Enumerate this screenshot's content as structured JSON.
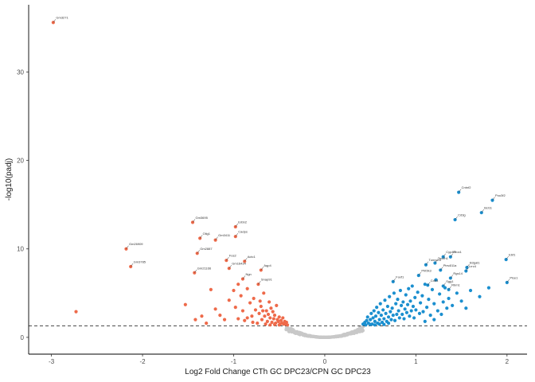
{
  "chart_data": {
    "type": "scatter",
    "title": "",
    "xlabel": "Log2 Fold Change CTh GC DPC23/CPN GC DPC23",
    "ylabel": "-log10(padj)",
    "xlim": [
      -3.25,
      2.22
    ],
    "ylim": [
      -1.9,
      37.6
    ],
    "x_ticks": [
      "-3",
      "-2",
      "-1",
      "0",
      "1",
      "2"
    ],
    "y_ticks": [
      "0",
      "10",
      "20",
      "30"
    ],
    "threshold_y": 1.3,
    "colors": {
      "down": "#EE6A4A",
      "up": "#1B8FCF",
      "ns": "#C8C8C8",
      "axis": "#000000",
      "threshold": "#333333"
    },
    "grid": false,
    "legend": "none",
    "labeled_points": [
      {
        "label": "Gm3271",
        "x": -2.98,
        "y": 35.6,
        "group": "down"
      },
      {
        "label": "Gm26909",
        "x": -2.18,
        "y": 10.0,
        "group": "down"
      },
      {
        "label": "Gm3785",
        "x": -2.13,
        "y": 8.0,
        "group": "down"
      },
      {
        "label": "Gm3695",
        "x": -1.45,
        "y": 13.0,
        "group": "down"
      },
      {
        "label": "Olig1",
        "x": -1.37,
        "y": 11.2,
        "group": "down"
      },
      {
        "label": "Gm3411",
        "x": -1.2,
        "y": 11.0,
        "group": "down"
      },
      {
        "label": "Gm2887",
        "x": -1.4,
        "y": 9.5,
        "group": "down"
      },
      {
        "label": "Gm21166",
        "x": -1.43,
        "y": 7.3,
        "group": "down"
      },
      {
        "label": "Erbb2",
        "x": -0.98,
        "y": 12.5,
        "group": "down"
      },
      {
        "label": "Cadps",
        "x": -0.98,
        "y": 11.4,
        "group": "down"
      },
      {
        "label": "Fos2",
        "x": -1.08,
        "y": 8.7,
        "group": "down"
      },
      {
        "label": "Gm16434",
        "x": -1.05,
        "y": 7.8,
        "group": "down"
      },
      {
        "label": "Actc1",
        "x": -0.88,
        "y": 8.6,
        "group": "down"
      },
      {
        "label": "Ngn",
        "x": -0.9,
        "y": 6.6,
        "group": "down"
      },
      {
        "label": "Aqp4",
        "x": -0.7,
        "y": 7.6,
        "group": "down"
      },
      {
        "label": "Snap91",
        "x": -0.73,
        "y": 6.0,
        "group": "down"
      },
      {
        "label": "Cntnf2",
        "x": 1.47,
        "y": 16.4,
        "group": "up"
      },
      {
        "label": "Cd3g",
        "x": 1.43,
        "y": 13.3,
        "group": "up"
      },
      {
        "label": "Pou3f2",
        "x": 1.84,
        "y": 15.5,
        "group": "up"
      },
      {
        "label": "Bcl11",
        "x": 1.72,
        "y": 14.1,
        "group": "up"
      },
      {
        "label": "Cyp4f2",
        "x": 1.3,
        "y": 9.1,
        "group": "up"
      },
      {
        "label": "Prox1",
        "x": 1.38,
        "y": 9.1,
        "group": "up"
      },
      {
        "label": "Ebf1",
        "x": 1.99,
        "y": 8.8,
        "group": "up"
      },
      {
        "label": "Tunnr2l3",
        "x": 1.11,
        "y": 8.2,
        "group": "up"
      },
      {
        "label": "Tox2h1",
        "x": 1.21,
        "y": 8.4,
        "group": "up"
      },
      {
        "label": "Ptrs4l11a",
        "x": 1.27,
        "y": 7.6,
        "group": "up"
      },
      {
        "label": "B3gat1",
        "x": 1.56,
        "y": 7.9,
        "group": "up"
      },
      {
        "label": "Lrrc4",
        "x": 1.55,
        "y": 7.5,
        "group": "up"
      },
      {
        "label": "Phf2k3",
        "x": 1.03,
        "y": 7.0,
        "group": "up"
      },
      {
        "label": "Rgs14",
        "x": 1.38,
        "y": 6.7,
        "group": "up"
      },
      {
        "label": "Rbm1",
        "x": 1.36,
        "y": 5.4,
        "group": "up"
      },
      {
        "label": "Foxf1",
        "x": 0.75,
        "y": 6.3,
        "group": "up"
      },
      {
        "label": "Plce1",
        "x": 2.0,
        "y": 6.2,
        "group": "up"
      },
      {
        "label": "Sgg1",
        "x": 1.3,
        "y": 5.8,
        "group": "up"
      },
      {
        "label": "Cdh4",
        "x": 1.13,
        "y": 5.9,
        "group": "up"
      }
    ],
    "extra_down_points": [
      [
        -2.73,
        2.9
      ],
      [
        -1.53,
        3.7
      ],
      [
        -1.42,
        2.0
      ],
      [
        -1.35,
        2.4
      ],
      [
        -1.3,
        1.6
      ],
      [
        -1.2,
        3.2
      ],
      [
        -1.15,
        2.5
      ],
      [
        -1.1,
        2.0
      ],
      [
        -1.05,
        4.2
      ],
      [
        -1.0,
        5.3
      ],
      [
        -0.98,
        3.4
      ],
      [
        -0.95,
        2.1
      ],
      [
        -0.92,
        4.7
      ],
      [
        -0.9,
        3.0
      ],
      [
        -0.88,
        1.9
      ],
      [
        -0.85,
        5.5
      ],
      [
        -0.82,
        3.9
      ],
      [
        -0.8,
        2.4
      ],
      [
        -0.78,
        4.4
      ],
      [
        -0.76,
        3.1
      ],
      [
        -0.74,
        1.6
      ],
      [
        -0.72,
        2.7
      ],
      [
        -0.7,
        3.5
      ],
      [
        -0.69,
        2.0
      ],
      [
        -0.67,
        5.0
      ],
      [
        -0.66,
        2.4
      ],
      [
        -0.64,
        3.0
      ],
      [
        -0.63,
        1.8
      ],
      [
        -0.62,
        2.6
      ],
      [
        -0.61,
        4.0
      ],
      [
        -0.6,
        2.2
      ],
      [
        -0.59,
        3.3
      ],
      [
        -0.58,
        1.7
      ],
      [
        -0.57,
        2.9
      ],
      [
        -0.56,
        2.1
      ],
      [
        -0.55,
        2.5
      ],
      [
        -0.54,
        1.6
      ],
      [
        -0.53,
        3.6
      ],
      [
        -0.52,
        2.0
      ],
      [
        -0.51,
        1.8
      ],
      [
        -0.5,
        2.3
      ],
      [
        -0.49,
        1.5
      ],
      [
        -0.48,
        1.9
      ],
      [
        -0.47,
        1.6
      ],
      [
        -0.46,
        2.2
      ],
      [
        -0.45,
        1.5
      ],
      [
        -0.44,
        1.8
      ],
      [
        -0.43,
        1.5
      ],
      [
        -0.42,
        1.7
      ],
      [
        -0.41,
        1.4
      ],
      [
        -0.85,
        2.2
      ],
      [
        -0.79,
        1.7
      ],
      [
        -0.71,
        4.1
      ],
      [
        -0.65,
        1.5
      ],
      [
        -0.6,
        1.4
      ],
      [
        -0.55,
        1.45
      ],
      [
        -0.5,
        1.4
      ],
      [
        -1.25,
        5.4
      ],
      [
        -0.95,
        6.0
      ],
      [
        -0.68,
        3.0
      ]
    ],
    "extra_up_points": [
      [
        0.42,
        1.5
      ],
      [
        0.44,
        1.7
      ],
      [
        0.46,
        1.9
      ],
      [
        0.47,
        2.3
      ],
      [
        0.48,
        1.6
      ],
      [
        0.5,
        2.0
      ],
      [
        0.51,
        2.7
      ],
      [
        0.52,
        1.5
      ],
      [
        0.53,
        2.2
      ],
      [
        0.54,
        3.0
      ],
      [
        0.55,
        1.8
      ],
      [
        0.56,
        2.4
      ],
      [
        0.57,
        3.4
      ],
      [
        0.58,
        1.6
      ],
      [
        0.59,
        2.8
      ],
      [
        0.6,
        2.0
      ],
      [
        0.61,
        3.8
      ],
      [
        0.62,
        2.5
      ],
      [
        0.63,
        1.7
      ],
      [
        0.64,
        3.1
      ],
      [
        0.65,
        2.1
      ],
      [
        0.66,
        4.2
      ],
      [
        0.67,
        2.7
      ],
      [
        0.68,
        1.8
      ],
      [
        0.69,
        3.5
      ],
      [
        0.7,
        2.3
      ],
      [
        0.71,
        4.6
      ],
      [
        0.72,
        2.9
      ],
      [
        0.73,
        2.0
      ],
      [
        0.74,
        3.3
      ],
      [
        0.75,
        2.5
      ],
      [
        0.76,
        5.0
      ],
      [
        0.77,
        1.9
      ],
      [
        0.78,
        3.8
      ],
      [
        0.79,
        2.6
      ],
      [
        0.8,
        4.3
      ],
      [
        0.81,
        3.0
      ],
      [
        0.82,
        2.2
      ],
      [
        0.83,
        5.3
      ],
      [
        0.84,
        3.6
      ],
      [
        0.85,
        2.6
      ],
      [
        0.86,
        4.0
      ],
      [
        0.87,
        2.1
      ],
      [
        0.88,
        3.2
      ],
      [
        0.89,
        4.8
      ],
      [
        0.9,
        2.8
      ],
      [
        0.91,
        3.7
      ],
      [
        0.92,
        5.5
      ],
      [
        0.93,
        2.4
      ],
      [
        0.94,
        4.1
      ],
      [
        0.95,
        3.0
      ],
      [
        0.96,
        5.8
      ],
      [
        0.97,
        3.5
      ],
      [
        0.98,
        2.2
      ],
      [
        0.99,
        4.5
      ],
      [
        1.0,
        3.1
      ],
      [
        1.02,
        5.1
      ],
      [
        1.04,
        2.7
      ],
      [
        1.05,
        3.9
      ],
      [
        1.07,
        4.7
      ],
      [
        1.08,
        2.9
      ],
      [
        1.1,
        6.0
      ],
      [
        1.12,
        3.4
      ],
      [
        1.14,
        4.3
      ],
      [
        1.16,
        2.5
      ],
      [
        1.18,
        5.4
      ],
      [
        1.2,
        3.8
      ],
      [
        1.22,
        6.5
      ],
      [
        1.24,
        3.0
      ],
      [
        1.26,
        4.9
      ],
      [
        1.28,
        2.6
      ],
      [
        1.3,
        4.0
      ],
      [
        1.32,
        5.6
      ],
      [
        1.34,
        3.3
      ],
      [
        1.36,
        4.4
      ],
      [
        1.4,
        3.6
      ],
      [
        1.45,
        5.0
      ],
      [
        1.5,
        4.1
      ],
      [
        1.55,
        3.3
      ],
      [
        1.6,
        5.3
      ],
      [
        1.7,
        4.6
      ],
      [
        1.8,
        5.6
      ],
      [
        1.2,
        2.0
      ],
      [
        1.1,
        1.8
      ],
      [
        0.45,
        1.4
      ],
      [
        0.5,
        1.45
      ],
      [
        0.55,
        1.4
      ],
      [
        0.6,
        1.5
      ],
      [
        0.65,
        1.45
      ],
      [
        0.7,
        1.6
      ]
    ]
  }
}
